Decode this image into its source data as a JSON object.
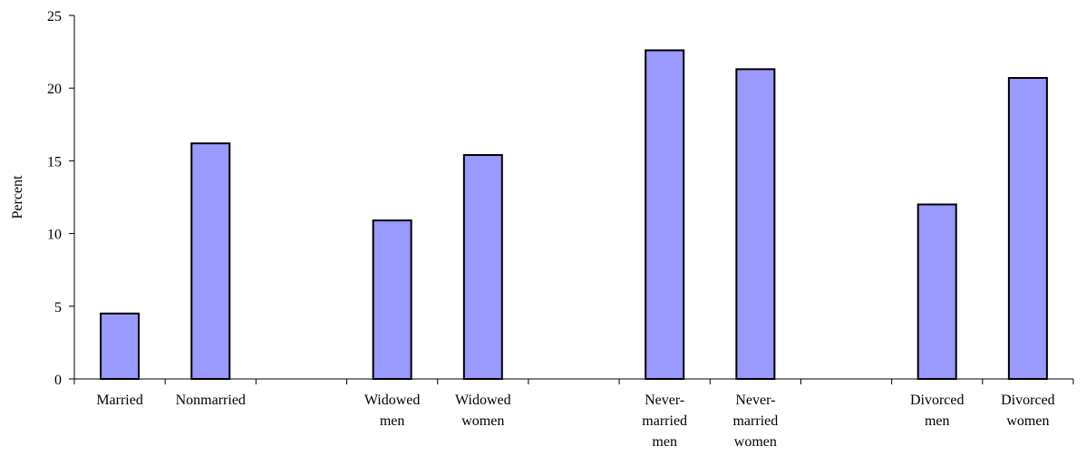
{
  "chart_data": {
    "type": "bar",
    "ylabel": "Percent",
    "xlabel": "",
    "title": "",
    "ylim": [
      0,
      25
    ],
    "yticks": [
      0,
      5,
      10,
      15,
      20,
      25
    ],
    "bar_color": "#9999ff",
    "slots": [
      {
        "label_lines": [
          "Married"
        ],
        "value": 4.5
      },
      {
        "label_lines": [
          "Nonmarried"
        ],
        "value": 16.2
      },
      {
        "label_lines": [],
        "value": null
      },
      {
        "label_lines": [
          "Widowed",
          "men"
        ],
        "value": 10.9
      },
      {
        "label_lines": [
          "Widowed",
          "women"
        ],
        "value": 15.4
      },
      {
        "label_lines": [],
        "value": null
      },
      {
        "label_lines": [
          "Never-",
          "married",
          "men"
        ],
        "value": 22.6
      },
      {
        "label_lines": [
          "Never-",
          "married",
          "women"
        ],
        "value": 21.3
      },
      {
        "label_lines": [],
        "value": null
      },
      {
        "label_lines": [
          "Divorced",
          "men"
        ],
        "value": 12.0
      },
      {
        "label_lines": [
          "Divorced",
          "women"
        ],
        "value": 20.7
      }
    ]
  }
}
